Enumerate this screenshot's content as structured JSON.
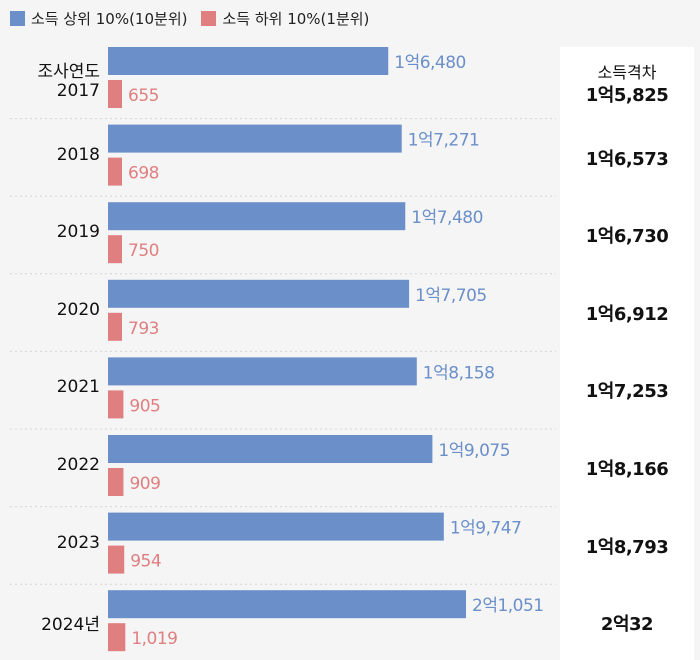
{
  "legend": {
    "top": "소득 상위 10%(10분위)",
    "bottom": "소득 하위 10%(1분위)"
  },
  "gap_header": "소득격차",
  "survey_year_label": "조사연도",
  "colors": {
    "top": "#6b8fc9",
    "bottom": "#e07f80",
    "top_text": "#6b8fc9",
    "bottom_text": "#e07f80"
  },
  "chart_data": {
    "type": "bar",
    "orientation": "horizontal",
    "categories": [
      "2017",
      "2018",
      "2019",
      "2020",
      "2021",
      "2022",
      "2023",
      "2024년"
    ],
    "series": [
      {
        "name": "소득 상위 10%(10분위)",
        "values": [
          16480,
          17271,
          17480,
          17705,
          18158,
          19075,
          19747,
          21051
        ],
        "labels": [
          "1억6,480",
          "1억7,271",
          "1억7,480",
          "1억7,705",
          "1억8,158",
          "1억9,075",
          "1억9,747",
          "2억1,051"
        ]
      },
      {
        "name": "소득 하위 10%(1분위)",
        "values": [
          655,
          698,
          750,
          793,
          905,
          909,
          954,
          1019
        ],
        "labels": [
          "655",
          "698",
          "750",
          "793",
          "905",
          "909",
          "954",
          "1,019"
        ]
      }
    ],
    "gap": {
      "title": "소득격차",
      "values": [
        15825,
        16573,
        16730,
        16912,
        17253,
        18166,
        18793,
        20032
      ],
      "labels": [
        "1억5,825",
        "1억6,573",
        "1억6,730",
        "1억6,912",
        "1억7,253",
        "1억8,166",
        "1억8,793",
        "2억32"
      ]
    }
  }
}
